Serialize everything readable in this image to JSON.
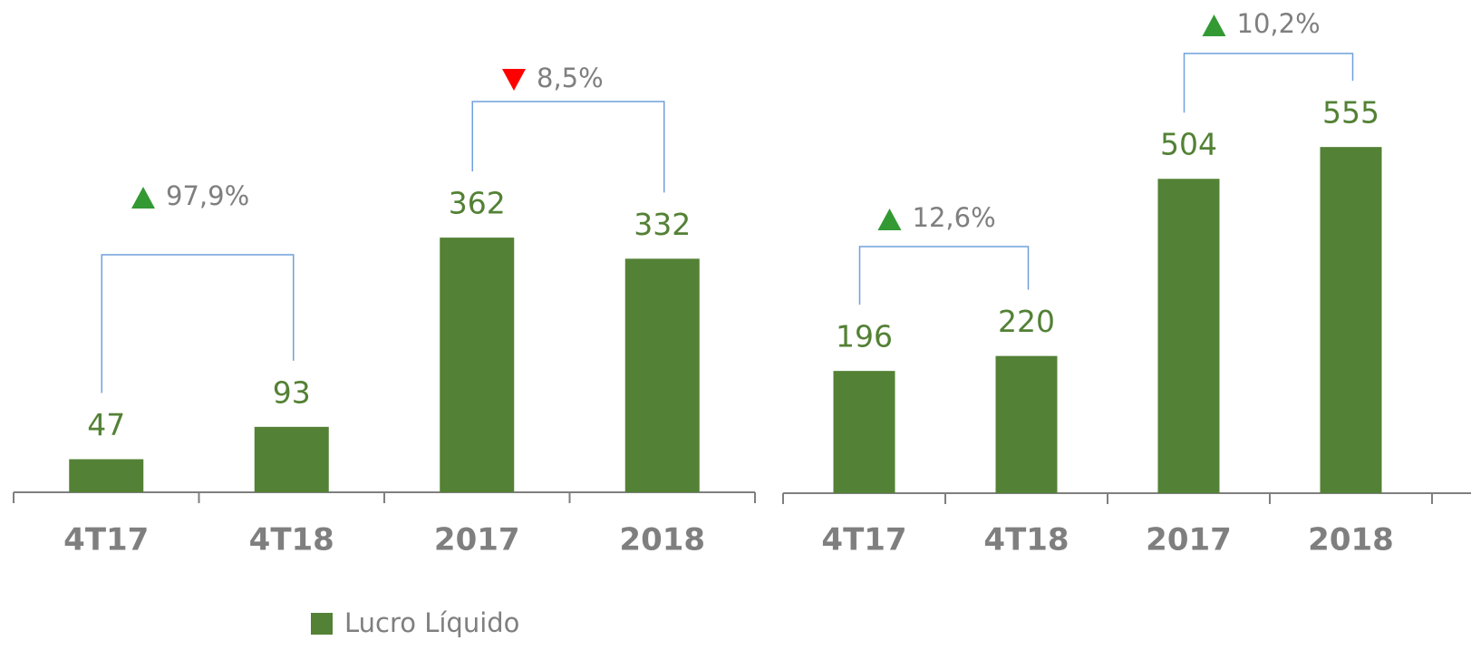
{
  "chart_data": [
    {
      "type": "bar",
      "categories": [
        "4T17",
        "4T18",
        "2017",
        "2018"
      ],
      "values": [
        47,
        93,
        362,
        332
      ],
      "color": "#538135",
      "annotations": [
        {
          "text": "97,9%",
          "direction": "up",
          "from": 0,
          "to": 1
        },
        {
          "text": "8,5%",
          "direction": "down",
          "from": 2,
          "to": 3
        }
      ]
    },
    {
      "type": "bar",
      "categories": [
        "4T17",
        "4T18",
        "2017",
        "2018"
      ],
      "values": [
        196,
        220,
        504,
        555
      ],
      "color": "#538135",
      "annotations": [
        {
          "text": "12,6%",
          "direction": "up",
          "from": 0,
          "to": 1
        },
        {
          "text": "10,2%",
          "direction": "up",
          "from": 2,
          "to": 3
        }
      ]
    }
  ],
  "legend": {
    "name": "Lucro Líquido",
    "color": "#538135"
  }
}
